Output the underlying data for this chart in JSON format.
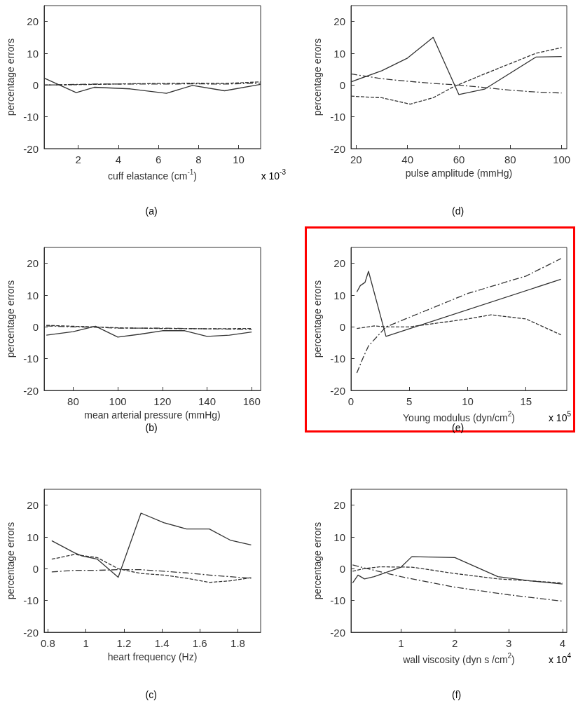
{
  "chart_data": [
    {
      "type": "line",
      "xlabel": "cuff elastance (cm$^{-1}$)",
      "ylabel": "percentage errors",
      "annotations": [
        "x 10$^{-3}$",
        "(a)"
      ],
      "xlim": [
        0.3,
        11.1
      ],
      "xticks": [
        2,
        4,
        6,
        8,
        10
      ],
      "ylim": [
        -20,
        25
      ],
      "yticks": [
        -20,
        -10,
        0,
        10,
        20
      ],
      "grid": false,
      "marker": "none",
      "series": [
        {
          "color": "#333333",
          "line_style": "solid",
          "x": [
            0.3,
            1.9,
            2.8,
            4.6,
            6.4,
            7.7,
            9.3,
            11.1
          ],
          "values": [
            2.2,
            -2.4,
            -0.7,
            -1.2,
            -2.6,
            -0.1,
            -1.8,
            0.2
          ]
        },
        {
          "color": "#333333",
          "line_style": "dashed",
          "x": [
            0.3,
            2.8,
            4.6,
            6.4,
            7.7,
            9.3,
            11.1
          ],
          "values": [
            0,
            0.2,
            0.4,
            0.5,
            0.6,
            0.5,
            1.0
          ]
        },
        {
          "color": "#333333",
          "line_style": "dashdot",
          "x": [
            0.3,
            2.8,
            4.6,
            6.4,
            7.7,
            9.3,
            11.1
          ],
          "values": [
            0,
            0.3,
            0.3,
            0.3,
            0.4,
            0.3,
            0.6
          ]
        }
      ]
    },
    {
      "type": "line",
      "xlabel": "pulse amplitude (mmHg)",
      "ylabel": "percentage errors",
      "annotations": [
        "(d)"
      ],
      "xlim": [
        18,
        102
      ],
      "xticks": [
        20,
        40,
        60,
        80,
        100
      ],
      "ylim": [
        -20,
        25
      ],
      "yticks": [
        -20,
        -10,
        0,
        10,
        20
      ],
      "grid": false,
      "marker": "none",
      "series": [
        {
          "color": "#333333",
          "line_style": "solid",
          "x": [
            18,
            30,
            40,
            50,
            60,
            70,
            90,
            100
          ],
          "values": [
            1,
            4.5,
            8.5,
            15,
            -3,
            -1.3,
            8.8,
            9
          ]
        },
        {
          "color": "#333333",
          "line_style": "dashed",
          "x": [
            18,
            30,
            41,
            50,
            58,
            70,
            90,
            100
          ],
          "values": [
            -3.5,
            -4,
            -6,
            -4,
            -0.5,
            3.5,
            10,
            11.8
          ]
        },
        {
          "color": "#333333",
          "line_style": "dashdot",
          "x": [
            18,
            30,
            40,
            50,
            60,
            70,
            80,
            90,
            100
          ],
          "values": [
            3.5,
            2,
            1.2,
            0.5,
            0,
            -0.8,
            -1.6,
            -2.2,
            -2.5
          ]
        }
      ]
    },
    {
      "type": "line",
      "xlabel": "mean arterial pressure (mmHg)",
      "ylabel": "percentage errors",
      "annotations": [
        "(b)"
      ],
      "xlim": [
        67,
        164
      ],
      "xticks": [
        80,
        100,
        120,
        140,
        160
      ],
      "ylim": [
        -20,
        25
      ],
      "yticks": [
        -20,
        -10,
        0,
        10,
        20
      ],
      "grid": false,
      "marker": "none",
      "series": [
        {
          "color": "#333333",
          "line_style": "solid",
          "x": [
            68,
            80,
            90,
            100,
            110,
            120,
            130,
            140,
            150,
            160
          ],
          "values": [
            -2.6,
            -1.5,
            0.2,
            -3.2,
            -2.3,
            -1.2,
            -1.2,
            -3,
            -2.6,
            -1.6
          ]
        },
        {
          "color": "#333333",
          "line_style": "dashed",
          "x": [
            68,
            80,
            90,
            100,
            120,
            140,
            160
          ],
          "values": [
            0.5,
            0.2,
            0,
            -0.3,
            -0.5,
            -0.6,
            -0.5
          ]
        },
        {
          "color": "#333333",
          "line_style": "dashdot",
          "x": [
            68,
            80,
            90,
            100,
            120,
            140,
            160
          ],
          "values": [
            0.3,
            0,
            -0.1,
            -0.4,
            -0.4,
            -0.6,
            -0.8
          ]
        }
      ]
    },
    {
      "type": "line",
      "xlabel": "Young modulus (dyn/cm$^{2}$)",
      "ylabel": "percentage errors",
      "annotations": [
        "x 10$^{5}$",
        "(e)"
      ],
      "xlim": [
        0,
        18.5
      ],
      "xticks": [
        0,
        5,
        10,
        15
      ],
      "ylim": [
        -20,
        25
      ],
      "yticks": [
        -20,
        -10,
        0,
        10,
        20
      ],
      "grid": false,
      "marker": "none",
      "series": [
        {
          "color": "#333333",
          "line_style": "solid",
          "x": [
            0.5,
            0.8,
            1.2,
            1.5,
            3,
            18
          ],
          "values": [
            11,
            13,
            14,
            17.5,
            -3,
            15
          ]
        },
        {
          "color": "#333333",
          "line_style": "dashed",
          "x": [
            0.5,
            2,
            3,
            5,
            10,
            12,
            15,
            18
          ],
          "values": [
            -0.5,
            0.3,
            0,
            0,
            2.5,
            3.8,
            2.5,
            -2.5
          ]
        },
        {
          "color": "#333333",
          "line_style": "dashdot",
          "x": [
            0.5,
            1,
            1.5,
            2.5,
            3,
            5,
            10,
            15,
            18
          ],
          "values": [
            -14.5,
            -10,
            -6,
            -2,
            0,
            3,
            10.5,
            16,
            21.5
          ]
        }
      ]
    },
    {
      "type": "line",
      "xlabel": "heart frequency (Hz)",
      "ylabel": "percentage errors",
      "annotations": [
        "(c)"
      ],
      "xlim": [
        0.78,
        1.92
      ],
      "xticks": [
        0.8,
        1,
        1.2,
        1.4,
        1.6,
        1.8
      ],
      "ylim": [
        -20,
        25
      ],
      "yticks": [
        -20,
        -10,
        0,
        10,
        20
      ],
      "grid": false,
      "marker": "none",
      "series": [
        {
          "color": "#333333",
          "line_style": "solid",
          "x": [
            0.82,
            0.94,
            0.98,
            1.06,
            1.17,
            1.29,
            1.41,
            1.53,
            1.65,
            1.76,
            1.87
          ],
          "values": [
            8.8,
            5,
            4,
            3,
            -2.7,
            17.5,
            14.5,
            12.5,
            12.5,
            9,
            7.5
          ]
        },
        {
          "color": "#333333",
          "line_style": "dashed",
          "x": [
            0.82,
            0.94,
            1.06,
            1.17,
            1.29,
            1.41,
            1.53,
            1.65,
            1.76,
            1.87
          ],
          "values": [
            3,
            4.5,
            3.5,
            0,
            -1.5,
            -2,
            -3,
            -4.3,
            -3.8,
            -2.8
          ]
        },
        {
          "color": "#333333",
          "line_style": "dashdot",
          "x": [
            0.82,
            0.94,
            1.06,
            1.17,
            1.29,
            1.41,
            1.53,
            1.65,
            1.76,
            1.87
          ],
          "values": [
            -1,
            -0.5,
            -0.5,
            -0.3,
            -0.3,
            -0.8,
            -1.3,
            -2,
            -2.5,
            -3
          ]
        }
      ]
    },
    {
      "type": "line",
      "xlabel": "wall viscosity (dyn s /cm$^{2}$)",
      "ylabel": "percentage errors",
      "annotations": [
        "x 10$^{4}$",
        "(f)"
      ],
      "xlim": [
        0.07,
        4.08
      ],
      "xticks": [
        1,
        2,
        3,
        4
      ],
      "ylim": [
        -20,
        25
      ],
      "yticks": [
        -20,
        -10,
        0,
        10,
        20
      ],
      "grid": false,
      "marker": "none",
      "series": [
        {
          "color": "#333333",
          "line_style": "solid",
          "x": [
            0.1,
            0.2,
            0.32,
            0.5,
            1,
            1.2,
            2,
            2.8,
            3.4,
            4
          ],
          "values": [
            -4.5,
            -2,
            -3.2,
            -2.5,
            0.5,
            3.8,
            3.5,
            -2.5,
            -3.8,
            -4.8
          ]
        },
        {
          "color": "#333333",
          "line_style": "dashed",
          "x": [
            0.1,
            0.3,
            0.6,
            1.2,
            2,
            2.8,
            3.4,
            4
          ],
          "values": [
            -0.8,
            0,
            0.6,
            0.5,
            -1.5,
            -3.2,
            -3.8,
            -4.5
          ]
        },
        {
          "color": "#333333",
          "line_style": "dashdot",
          "x": [
            0.1,
            0.5,
            1,
            2,
            3,
            4
          ],
          "values": [
            1.2,
            -0.5,
            -2.5,
            -5.8,
            -8.2,
            -10.2
          ]
        }
      ]
    }
  ]
}
